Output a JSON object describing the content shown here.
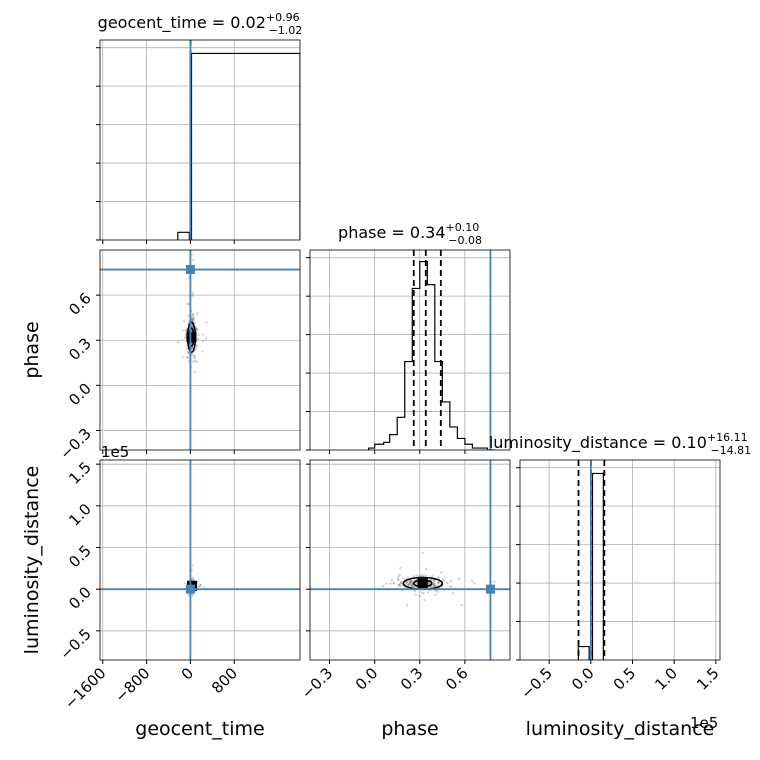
{
  "chart_data": {
    "type": "corner",
    "truth_color": "#4682b4",
    "parameters": [
      {
        "name": "geocent_time",
        "title": "geocent_time = 0.02",
        "title_sup": "+0.96",
        "title_sub": "−1.02",
        "range": [
          -1650,
          2000
        ],
        "truth": 0,
        "quantiles": [
          -1.0,
          0.02,
          0.98
        ],
        "ticks": [
          -1600,
          -800,
          0,
          800
        ],
        "tick_labels": [
          "−1600",
          "−800",
          "0",
          "800"
        ]
      },
      {
        "name": "phase",
        "title": "phase = 0.34",
        "title_sup": "+0.10",
        "title_sub": "−0.08",
        "range": [
          -0.43,
          0.9
        ],
        "truth": 0.77,
        "quantiles": [
          0.26,
          0.34,
          0.44
        ],
        "ticks": [
          -0.3,
          0.0,
          0.3,
          0.6
        ],
        "tick_labels": [
          "−0.3",
          "0.0",
          "0.3",
          "0.6"
        ]
      },
      {
        "name": "luminosity_distance",
        "title": "luminosity_distance = 0.10",
        "title_sup": "+16.11",
        "title_sub": "−14.81",
        "range": [
          -0.85,
          1.55
        ],
        "truth": 0.0,
        "quantiles": [
          -0.148,
          0.001,
          0.162
        ],
        "ticks": [
          -0.5,
          0.0,
          0.5,
          1.0,
          1.5
        ],
        "tick_labels": [
          "−0.5",
          "0.0",
          "0.5",
          "1.0",
          "1.5"
        ],
        "offset_text": "1e5"
      }
    ],
    "histograms": {
      "geocent_time": {
        "edges": [
          -230,
          -20,
          20,
          2000
        ],
        "counts": [
          0.04,
          0,
          0.97
        ],
        "ymax": 1.0
      },
      "phase": {
        "edges": [
          -0.04,
          0.0,
          0.06,
          0.1,
          0.15,
          0.2,
          0.25,
          0.3,
          0.35,
          0.4,
          0.45,
          0.5,
          0.55,
          0.6,
          0.65,
          0.7,
          0.75,
          0.8
        ],
        "counts": [
          0.01,
          0.03,
          0.04,
          0.08,
          0.17,
          0.46,
          0.84,
          0.98,
          0.86,
          0.46,
          0.25,
          0.12,
          0.06,
          0.03,
          0.01,
          0.01,
          0.0
        ],
        "ymax": 1.0
      },
      "luminosity_distance": {
        "edges": [
          -0.15,
          -0.02,
          0.02,
          0.15
        ],
        "counts": [
          0.07,
          0,
          0.97
        ],
        "ymax": 1.0
      }
    },
    "two_d": [
      {
        "x": "geocent_time",
        "y": "phase",
        "center": [
          20,
          0.32
        ],
        "contours": [
          [
            40,
            0.06
          ],
          [
            70,
            0.1
          ]
        ]
      },
      {
        "x": "geocent_time",
        "y": "luminosity_distance",
        "center": [
          30,
          0.04
        ],
        "contours": [
          [
            25,
            0.04
          ],
          [
            40,
            0.05
          ]
        ]
      },
      {
        "x": "phase",
        "y": "luminosity_distance",
        "center": [
          0.32,
          0.07
        ],
        "contours": [
          [
            0.06,
            0.04
          ],
          [
            0.13,
            0.07
          ]
        ]
      }
    ],
    "grid": true
  }
}
